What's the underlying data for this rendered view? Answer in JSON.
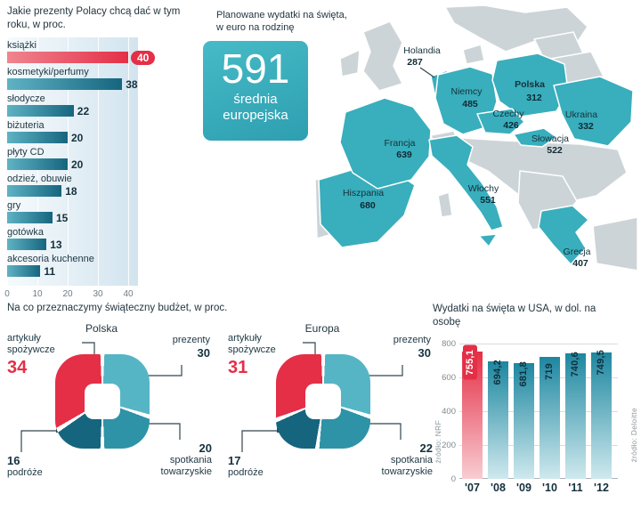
{
  "sections": {
    "budget_title": "Na co przeznaczymy świąteczny budżet, w proc."
  },
  "colors": {
    "accent_red": "#e42f47",
    "teal": "#39aebc",
    "teal_light": "#55b5c5",
    "teal_mid": "#2e93a6",
    "teal_deep": "#16657f",
    "panel_blue": "#d2e4ef",
    "map_gray": "#cdd4d7"
  },
  "chart_data": [
    {
      "id": "gifts",
      "type": "bar",
      "orientation": "horizontal",
      "title": "Jakie prezenty Polacy chcą dać w tym roku, w proc.",
      "categories": [
        "książki",
        "kosmetyki/perfumy",
        "słodycze",
        "biżuteria",
        "płyty CD",
        "odzież, obuwie",
        "gry",
        "gotówka",
        "akcesoria kuchenne"
      ],
      "values": [
        40,
        38,
        22,
        20,
        20,
        18,
        15,
        13,
        11
      ],
      "highlight_index": 0,
      "xlim": [
        0,
        40
      ],
      "x_ticks": [
        0,
        10,
        20,
        30,
        40
      ]
    },
    {
      "id": "budget-polska",
      "type": "pie",
      "title": "Polska",
      "segments": [
        {
          "label": "prezenty",
          "value": 30
        },
        {
          "label": "spotkania towarzyskie",
          "value": 20
        },
        {
          "label": "podróże",
          "value": 16
        },
        {
          "label": "artykuły spożywcze",
          "value": 34
        }
      ],
      "highlight": "artykuły spożywcze"
    },
    {
      "id": "budget-europa",
      "type": "pie",
      "title": "Europa",
      "segments": [
        {
          "label": "prezenty",
          "value": 30
        },
        {
          "label": "spotkania towarzyskie",
          "value": 22
        },
        {
          "label": "podróże",
          "value": 17
        },
        {
          "label": "artykuły spożywcze",
          "value": 31
        }
      ],
      "highlight": "artykuły spożywcze"
    },
    {
      "id": "usa-spending",
      "type": "bar",
      "title": "Wydatki na święta w USA, w dol. na osobę",
      "categories": [
        "'07",
        "'08",
        "'09",
        "'10",
        "'11",
        "'12"
      ],
      "values": [
        755.1,
        694.2,
        681.8,
        719,
        740.6,
        749.5
      ],
      "value_labels": [
        "755,1",
        "694,2",
        "681,8",
        "719",
        "740,6",
        "749,5"
      ],
      "highlight_index": 0,
      "ylim": [
        0,
        800
      ],
      "y_ticks": [
        0,
        200,
        400,
        600,
        800
      ],
      "sources": {
        "left": "źródło: NRF",
        "right": "źródło: Deloitte"
      }
    },
    {
      "id": "europe-map",
      "type": "map",
      "title": "Planowane wydatki na święta, w euro na rodzinę",
      "average": {
        "value": "591",
        "label": "średnia europejska"
      },
      "countries": [
        {
          "name": "Holandia",
          "value": "287"
        },
        {
          "name": "Niemcy",
          "value": "485"
        },
        {
          "name": "Polska",
          "value": "312"
        },
        {
          "name": "Czechy",
          "value": "426"
        },
        {
          "name": "Ukraina",
          "value": "332"
        },
        {
          "name": "Słowacja",
          "value": "522"
        },
        {
          "name": "Francja",
          "value": "639"
        },
        {
          "name": "Hiszpania",
          "value": "680"
        },
        {
          "name": "Włochy",
          "value": "551"
        },
        {
          "name": "Grecja",
          "value": "407"
        }
      ]
    }
  ]
}
